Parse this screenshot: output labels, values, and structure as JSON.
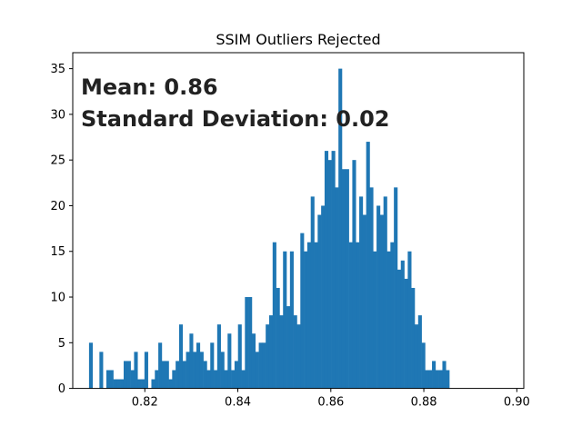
{
  "chart_data": {
    "type": "bar",
    "title": "SSIM Outliers Rejected",
    "xlabel": "",
    "ylabel": "",
    "xlim": [
      0.8045,
      0.9015
    ],
    "ylim": [
      0,
      36.75
    ],
    "xticks": [
      0.82,
      0.84,
      0.86,
      0.88,
      0.9
    ],
    "xtick_labels": [
      "0.82",
      "0.84",
      "0.86",
      "0.88",
      "0.90"
    ],
    "yticks": [
      0,
      5,
      10,
      15,
      20,
      25,
      30,
      35
    ],
    "ytick_labels": [
      "0",
      "5",
      "10",
      "15",
      "20",
      "25",
      "30",
      "35"
    ],
    "bin_start": 0.808,
    "bin_width": 0.000745,
    "values": [
      5,
      0,
      0,
      4,
      0,
      2,
      2,
      1,
      1,
      1,
      3,
      3,
      2,
      4,
      1,
      1,
      4,
      0,
      1,
      2,
      5,
      3,
      3,
      1,
      2,
      3,
      7,
      3,
      4,
      6,
      4,
      5,
      4,
      3,
      2,
      5,
      2,
      7,
      4,
      2,
      6,
      2,
      3,
      7,
      2,
      10,
      10,
      6,
      4,
      5,
      5,
      7,
      8,
      16,
      11,
      8,
      15,
      9,
      15,
      8,
      7,
      17,
      15,
      16,
      21,
      16,
      19,
      20,
      26,
      25,
      26,
      22,
      35,
      24,
      24,
      16,
      25,
      16,
      21,
      19,
      27,
      22,
      15,
      20,
      19,
      21,
      15,
      16,
      22,
      13,
      14,
      12,
      15,
      11,
      7,
      8,
      5,
      2,
      2,
      3,
      2,
      2,
      3,
      2
    ],
    "annotations": [
      "Mean: 0.86",
      "Standard Deviation: 0.02"
    ],
    "bar_color": "#1f77b4",
    "grid": false
  }
}
